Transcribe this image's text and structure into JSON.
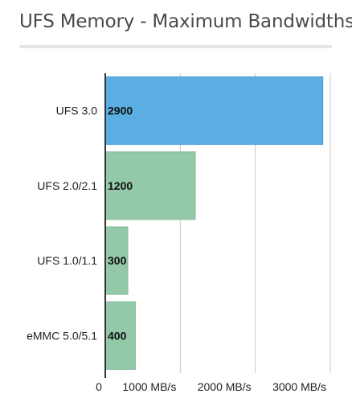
{
  "title": "UFS Memory - Maximum Bandwidths",
  "colors": {
    "highlight": "#5aaee2",
    "highlight_stroke": "#4a9ad2",
    "bar": "#93c9a8",
    "bar_stroke": "#7fb894",
    "grid": "#c9c9c9",
    "axis": "#333333",
    "text": "#111111"
  },
  "chart_data": {
    "type": "bar",
    "orientation": "horizontal",
    "title": "UFS Memory - Maximum Bandwidths",
    "categories": [
      "UFS 3.0",
      "UFS 2.0/2.1",
      "UFS 1.0/1.1",
      "eMMC 5.0/5.1"
    ],
    "values": [
      2900,
      1200,
      300,
      400
    ],
    "data_labels": [
      "2900",
      "1200",
      "300",
      "400"
    ],
    "highlight_index": 0,
    "xlim": [
      0,
      3000
    ],
    "x_ticks": [
      0,
      1000,
      2000,
      3000
    ],
    "x_tick_labels": [
      "0",
      "1000 MB/s",
      "2000 MB/s",
      "3000 MB/s"
    ],
    "xlabel": "",
    "ylabel": "",
    "grid": true,
    "legend": "none"
  }
}
